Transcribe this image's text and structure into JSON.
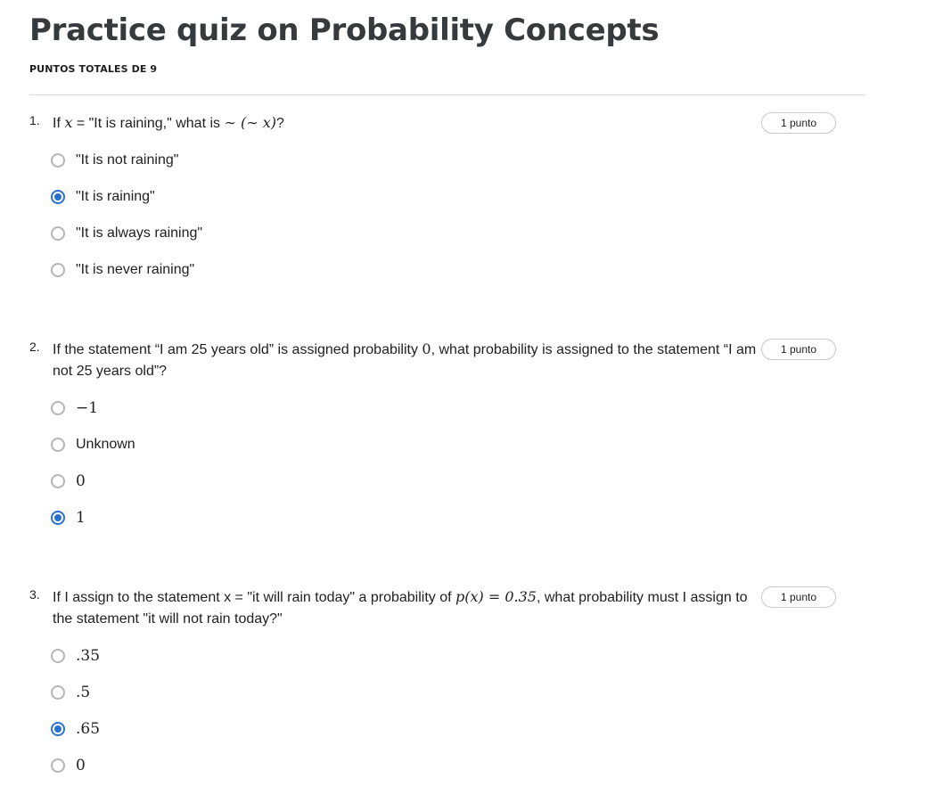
{
  "header": {
    "title": "Practice quiz on Probability Concepts",
    "points_total": "PUNTOS TOTALES DE 9"
  },
  "questions": [
    {
      "number": "1.",
      "text": {
        "p1": "If ",
        "m1": "x",
        "p2": " = \"It is raining,\" what is ",
        "m2": "∼ (∼ x)",
        "p3": "?"
      },
      "points": "1 punto",
      "options": [
        {
          "label": "\"It is not raining\"",
          "checked": false
        },
        {
          "label": "\"It is raining\"",
          "checked": true
        },
        {
          "label": "\"It is always raining\"",
          "checked": false
        },
        {
          "label": "\"It is never raining\"",
          "checked": false
        }
      ]
    },
    {
      "number": "2.",
      "text": {
        "p1": "If the statement “I am 25 years old” is assigned probability ",
        "m1": "0",
        "p2": ", what probability is assigned to the statement “I am not 25 years old”?"
      },
      "points": "1 punto",
      "options": [
        {
          "label": "−1",
          "checked": false
        },
        {
          "label": "Unknown",
          "checked": false
        },
        {
          "label": "0",
          "checked": false
        },
        {
          "label": "1",
          "checked": true
        }
      ]
    },
    {
      "number": "3.",
      "text": {
        "p1": "If I assign to the statement x = \"it will rain today\" a probability of ",
        "m1": "p(x) = 0.35",
        "p2": ", what probability must I assign to the statement \"it will not rain today?\""
      },
      "points": "1 punto",
      "options": [
        {
          "label": ".35",
          "checked": false
        },
        {
          "label": ".5",
          "checked": false
        },
        {
          "label": ".65",
          "checked": true
        },
        {
          "label": "0",
          "checked": false
        }
      ]
    }
  ]
}
